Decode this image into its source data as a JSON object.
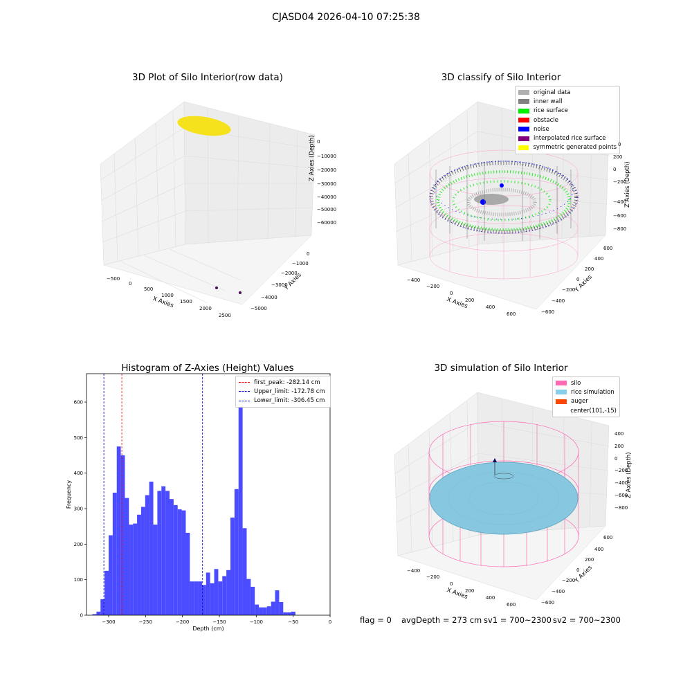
{
  "suptitle": "CJASD04 2026-04-10 07:25:38",
  "panels": {
    "raw": {
      "title": "3D Plot of Silo Interior(row data)",
      "xlabel": "X Axies",
      "ylabel": "Y Axies",
      "zlabel": "Z Axies (Depth)",
      "xticks": [
        "−500",
        "0",
        "500",
        "1000",
        "1500",
        "2000",
        "2500"
      ],
      "yticks": [
        "0",
        "−1000",
        "−2000",
        "−3000",
        "−4000",
        "−5000"
      ],
      "zticks": [
        "0",
        "−10000",
        "−20000",
        "−30000",
        "−40000",
        "−50000",
        "−60000"
      ]
    },
    "classify": {
      "title": "3D classify of Silo Interior",
      "xlabel": "X Axies",
      "ylabel": "Y Axies",
      "zlabel": "Z Axies (Depth)",
      "xticks": [
        "−400",
        "−200",
        "0",
        "200",
        "400",
        "600"
      ],
      "yticks": [
        "600",
        "400",
        "200",
        "0",
        "−200",
        "−400",
        "−600"
      ],
      "zticks": [
        "200",
        "0",
        "−200",
        "−400",
        "−600",
        "−800"
      ],
      "ztick_top": "0",
      "legend": [
        {
          "label": "original data",
          "color": "#b0b0b0"
        },
        {
          "label": "inner wall",
          "color": "#808080"
        },
        {
          "label": "rice surface",
          "color": "#00ee00"
        },
        {
          "label": "obstacle",
          "color": "#ff0000"
        },
        {
          "label": "noise",
          "color": "#0000ff"
        },
        {
          "label": "interpolated rice surface",
          "color": "#800080"
        },
        {
          "label": "symmetric generated points",
          "color": "#ffff00"
        }
      ]
    },
    "simulation": {
      "title": "3D simulation of Silo Interior",
      "xlabel": "X Axies",
      "ylabel": "Y Axies",
      "zlabel": "Z Axies (Depth)",
      "xticks": [
        "−400",
        "−200",
        "0",
        "200",
        "400",
        "600"
      ],
      "yticks": [
        "600",
        "400",
        "200",
        "0",
        "−200",
        "−400",
        "−600"
      ],
      "zticks": [
        "400",
        "200",
        "0",
        "−200",
        "−400",
        "−600",
        "−800"
      ],
      "legend": [
        {
          "label": "silo",
          "color": "#ff69b4"
        },
        {
          "label": "rice simulation",
          "color": "#87ceeb"
        },
        {
          "label": "auger",
          "color": "#ff4500"
        },
        {
          "label": "center(101,-15)",
          "color": ""
        }
      ]
    }
  },
  "chart_data": {
    "type": "bar",
    "title": "Histogram of Z-Axies (Height) Values",
    "xlabel": "Depth (cm)",
    "ylabel": "Frequency",
    "xlim": [
      -330,
      0
    ],
    "ylim": [
      0,
      680
    ],
    "xticks": [
      -300,
      -250,
      -200,
      -150,
      -100,
      -50,
      0
    ],
    "xtick_labels": [
      "−300",
      "−250",
      "−200",
      "−150",
      "−100",
      "−50",
      "0"
    ],
    "yticks": [
      0,
      100,
      200,
      300,
      400,
      500,
      600
    ],
    "bin_width": 5.5,
    "bin_start": -322,
    "values": [
      3,
      10,
      45,
      125,
      225,
      345,
      475,
      450,
      330,
      255,
      258,
      283,
      305,
      338,
      376,
      255,
      350,
      363,
      350,
      327,
      310,
      298,
      295,
      232,
      95,
      95,
      95,
      85,
      120,
      90,
      130,
      95,
      110,
      127,
      275,
      355,
      635,
      245,
      102,
      80,
      30,
      22,
      22,
      25,
      38,
      70,
      37,
      8,
      8,
      10
    ],
    "bar_color": "#4b4bff",
    "lines": [
      {
        "label": "first_peak: -282.14 cm",
        "x": -282.14,
        "color": "#ff0000"
      },
      {
        "label": "Upper_limit: -172.78 cm",
        "x": -172.78,
        "color": "#0000cc"
      },
      {
        "label": "Lower_limit: -306.45 cm",
        "x": -306.45,
        "color": "#0000cc"
      }
    ],
    "legend_position": "upper right"
  },
  "footer": {
    "flag": "flag = 0",
    "avg": "avgDepth = 273 cm",
    "sv1": "sv1 = 700~2300",
    "sv2": "sv2 = 700~2300"
  }
}
